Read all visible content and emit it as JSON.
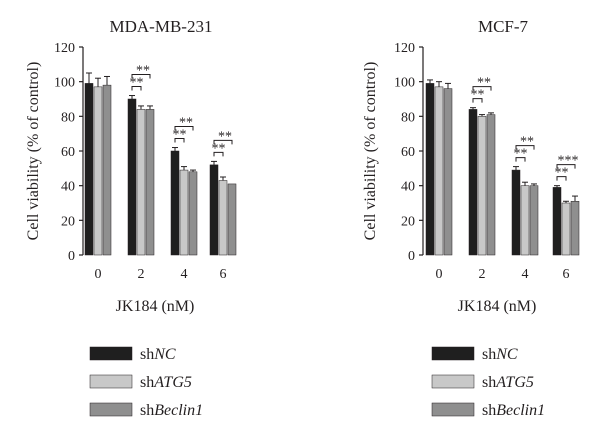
{
  "chart_data": [
    {
      "type": "bar",
      "title": "MDA-MB-231",
      "xlabel": "JK184 (nM)",
      "ylabel": "Cell viability (% of control)",
      "ylim": [
        0,
        120
      ],
      "yticks": [
        "0",
        "20",
        "40",
        "60",
        "80",
        "100",
        "120"
      ],
      "categories": [
        "0",
        "2",
        "4",
        "6"
      ],
      "series": [
        {
          "name": "shNC",
          "name_prefix": "sh",
          "name_italic": "NC",
          "color": "#1f1f1f",
          "values": [
            99,
            90,
            60,
            52
          ],
          "errors": [
            6,
            2,
            2,
            2
          ]
        },
        {
          "name": "shATG5",
          "name_prefix": "sh",
          "name_italic": "ATG5",
          "color": "#c8c8c8",
          "values": [
            97,
            84,
            49,
            43
          ],
          "errors": [
            5,
            2,
            2,
            2
          ]
        },
        {
          "name": "shBeclin1",
          "name_prefix": "sh",
          "name_italic": "Beclin1",
          "color": "#8f8f8f",
          "values": [
            98,
            84,
            48,
            41
          ],
          "errors": [
            5,
            2,
            1,
            0
          ]
        }
      ],
      "significance": [
        {
          "category_index": 1,
          "labels": [
            "**",
            "**"
          ]
        },
        {
          "category_index": 2,
          "labels": [
            "**",
            "**"
          ]
        },
        {
          "category_index": 3,
          "labels": [
            "**",
            "**"
          ]
        }
      ],
      "legend_position": "bottom"
    },
    {
      "type": "bar",
      "title": "MCF-7",
      "xlabel": "JK184 (nM)",
      "ylabel": "Cell viability (% of control)",
      "ylim": [
        0,
        120
      ],
      "yticks": [
        "0",
        "20",
        "40",
        "60",
        "80",
        "100",
        "120"
      ],
      "categories": [
        "0",
        "2",
        "4",
        "6"
      ],
      "series": [
        {
          "name": "shNC",
          "name_prefix": "sh",
          "name_italic": "NC",
          "color": "#1f1f1f",
          "values": [
            99,
            84,
            49,
            39
          ],
          "errors": [
            2,
            1,
            2,
            1
          ]
        },
        {
          "name": "shATG5",
          "name_prefix": "sh",
          "name_italic": "ATG5",
          "color": "#c8c8c8",
          "values": [
            97,
            80,
            40,
            30
          ],
          "errors": [
            3,
            1,
            2,
            1
          ]
        },
        {
          "name": "shBeclin1",
          "name_prefix": "sh",
          "name_italic": "Beclin1",
          "color": "#8f8f8f",
          "values": [
            96,
            81,
            40,
            31
          ],
          "errors": [
            3,
            1,
            1,
            3
          ]
        }
      ],
      "significance": [
        {
          "category_index": 1,
          "labels": [
            "**",
            "**"
          ]
        },
        {
          "category_index": 2,
          "labels": [
            "**",
            "**"
          ]
        },
        {
          "category_index": 3,
          "labels": [
            "**",
            "***"
          ]
        }
      ],
      "legend_position": "bottom"
    }
  ]
}
